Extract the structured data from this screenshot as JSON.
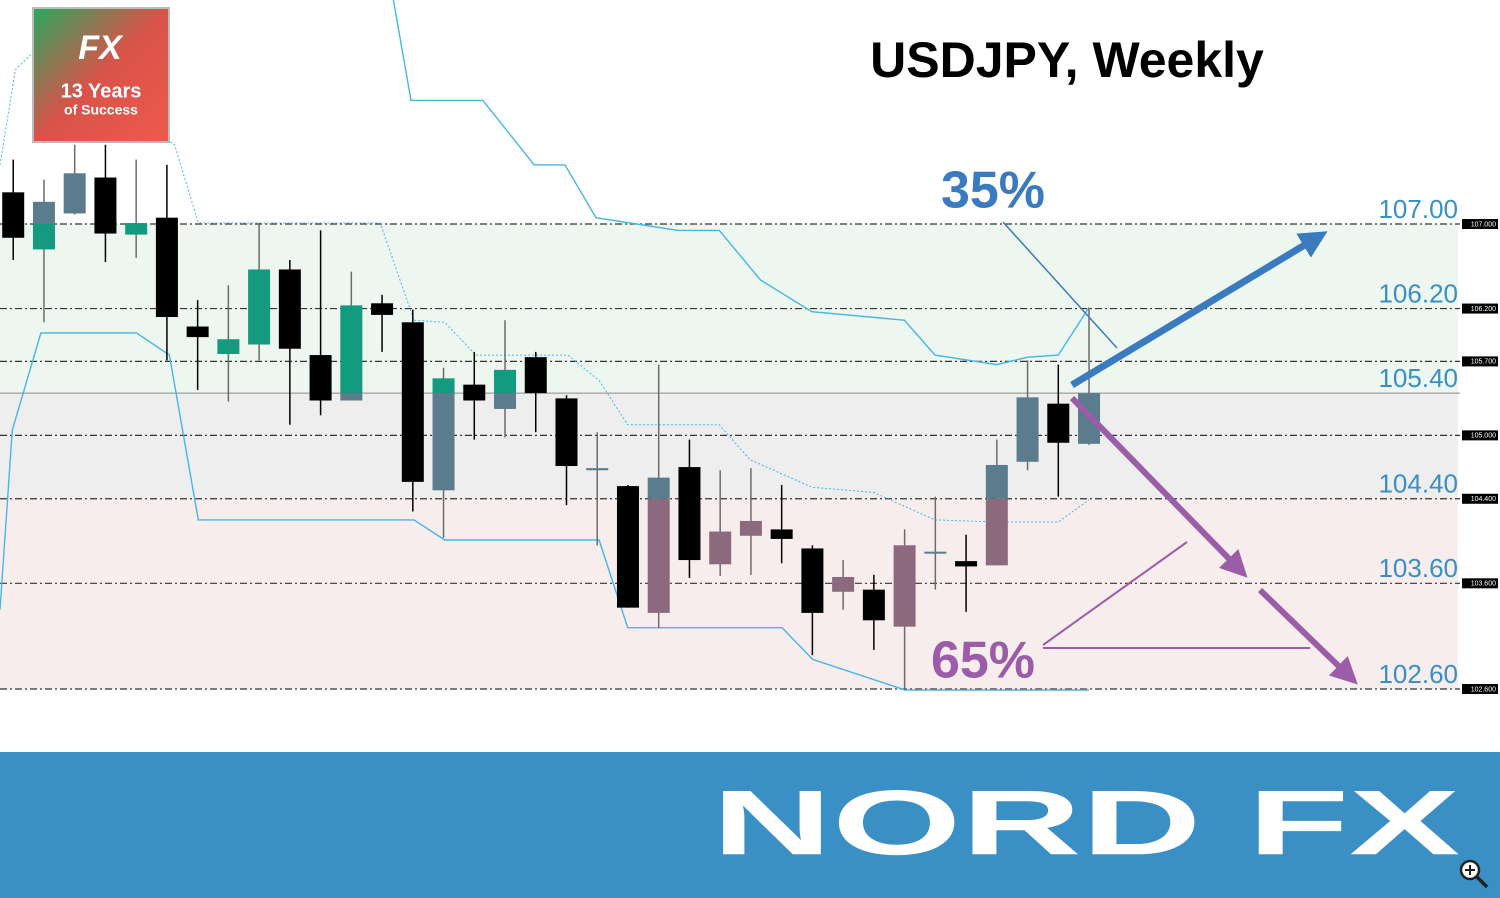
{
  "chart_data": {
    "type": "candlestick",
    "title": "USDJPY, Weekly",
    "ylim": [
      102.07,
      109.12
    ],
    "xlim": [
      -0.43,
      48.37
    ],
    "bear_color": "#000000",
    "bull_color": "#5b7c8c",
    "zones": [
      {
        "from": 107,
        "to": 105.4,
        "color": "#eef6f0",
        "bull_color": "#149a7f"
      },
      {
        "from": 105.4,
        "to": 104.4,
        "color": "#eeeeee"
      },
      {
        "from": 104.4,
        "to": 102.6,
        "color": "#f8eded",
        "bull_color": "#8c6a7d"
      }
    ],
    "levels": [
      {
        "value": 107,
        "label": "107.00",
        "tag": "107.000"
      },
      {
        "value": 106.2,
        "label": "106.20",
        "tag": "106.200"
      },
      {
        "value": 105.7,
        "tag": "105.700"
      },
      {
        "value": 105.4,
        "label": "105.40",
        "style": "solid"
      },
      {
        "value": 105,
        "tag": "105.000"
      },
      {
        "value": 104.4,
        "label": "104.40",
        "tag": "104.400"
      },
      {
        "value": 103.6,
        "label": "103.60",
        "tag": "103.600"
      },
      {
        "value": 102.6,
        "label": "102.60",
        "tag": "102.600"
      }
    ],
    "candles": {
      "open": [
        107.3,
        106.76,
        107.1,
        107.44,
        106.9,
        107.06,
        106.03,
        105.77,
        105.86,
        106.57,
        105.76,
        105.33,
        106.25,
        106.07,
        104.48,
        105.48,
        105.25,
        105.74,
        105.35,
        104.67,
        104.52,
        103.32,
        104.7,
        103.78,
        104.05,
        104.11,
        103.93,
        103.52,
        103.54,
        103.19,
        103.88,
        103.81,
        103.77,
        104.75,
        105.3,
        104.92
      ],
      "high": [
        107.61,
        107.42,
        107.75,
        107.75,
        107.61,
        107.56,
        106.28,
        106.42,
        107.01,
        106.66,
        106.94,
        106.55,
        106.33,
        106.19,
        105.64,
        105.79,
        106.09,
        105.79,
        105.38,
        105.03,
        104.53,
        105.67,
        104.96,
        104.67,
        104.69,
        104.53,
        103.96,
        103.82,
        103.68,
        104.11,
        104.42,
        104.06,
        104.96,
        105.71,
        105.67,
        106.21
      ],
      "low": [
        106.66,
        106.07,
        107.09,
        106.64,
        106.68,
        105.71,
        105.43,
        105.32,
        105.71,
        105.1,
        105.19,
        105.33,
        105.79,
        104.28,
        104.03,
        104.96,
        104.98,
        105.03,
        104.34,
        103.96,
        103.37,
        103.18,
        103.65,
        103.67,
        103.68,
        103.79,
        102.92,
        103.35,
        102.97,
        102.59,
        103.54,
        103.33,
        103.77,
        104.67,
        104.42,
        104.91
      ],
      "close": [
        106.87,
        107.21,
        107.48,
        106.91,
        107.01,
        106.12,
        105.93,
        105.91,
        106.57,
        105.82,
        105.33,
        106.23,
        106.14,
        104.56,
        105.54,
        105.33,
        105.62,
        105.4,
        104.71,
        104.69,
        103.37,
        104.6,
        103.82,
        104.09,
        104.19,
        104.02,
        103.32,
        103.66,
        103.25,
        103.96,
        103.89,
        103.76,
        104.72,
        105.36,
        104.93,
        105.4
      ]
    },
    "lines": [
      {
        "color": "#45b6e6",
        "dashed": false,
        "x": [
          12.37,
          12.94,
          15.28,
          16.95,
          17.95,
          18.96,
          21.63,
          22.97,
          24.31,
          25.98,
          28.99,
          29.99,
          32.0,
          33.0,
          34.0,
          35.0
        ],
        "values": [
          109.12,
          108.17,
          108.17,
          107.56,
          107.56,
          107.06,
          106.94,
          106.94,
          106.47,
          106.17,
          106.09,
          105.76,
          105.67,
          105.74,
          105.76,
          106.21
        ]
      },
      {
        "color": "#45b6e6",
        "dashed": false,
        "x": [
          -0.43,
          -0.03,
          0.9,
          4.01,
          5.08,
          6.02,
          13.04,
          14.04,
          19.06,
          19.99,
          25.01,
          26.01,
          29.02,
          35.0
        ],
        "values": [
          103.35,
          105.05,
          105.97,
          105.97,
          105.76,
          104.2,
          104.2,
          104.01,
          104.01,
          103.18,
          103.18,
          102.88,
          102.59,
          102.59
        ]
      },
      {
        "color": "#45b6e6",
        "dashed": true,
        "x": [
          -0.43,
          0.07,
          0.74,
          5.25,
          6.02,
          11.94,
          13.04,
          14.04,
          15.05,
          18.05,
          19.06,
          19.99,
          22.97,
          23.97,
          25.98,
          27.98,
          29.99,
          32.0,
          34.0,
          35.0
        ],
        "values": [
          107.56,
          108.46,
          108.65,
          107.75,
          107.01,
          107.01,
          106.09,
          106.07,
          105.76,
          105.76,
          105.52,
          105.1,
          105.1,
          104.77,
          104.51,
          104.46,
          104.2,
          104.18,
          104.18,
          104.39
        ]
      }
    ],
    "annotations": [
      {
        "text": "35%",
        "color": "#3a7bbf"
      },
      {
        "text": "65%",
        "color": "#9b5ca8"
      }
    ]
  },
  "logo": {
    "mark": "FX",
    "line1": "13 Years",
    "line2": "of Success"
  },
  "footer": "NORD FX"
}
